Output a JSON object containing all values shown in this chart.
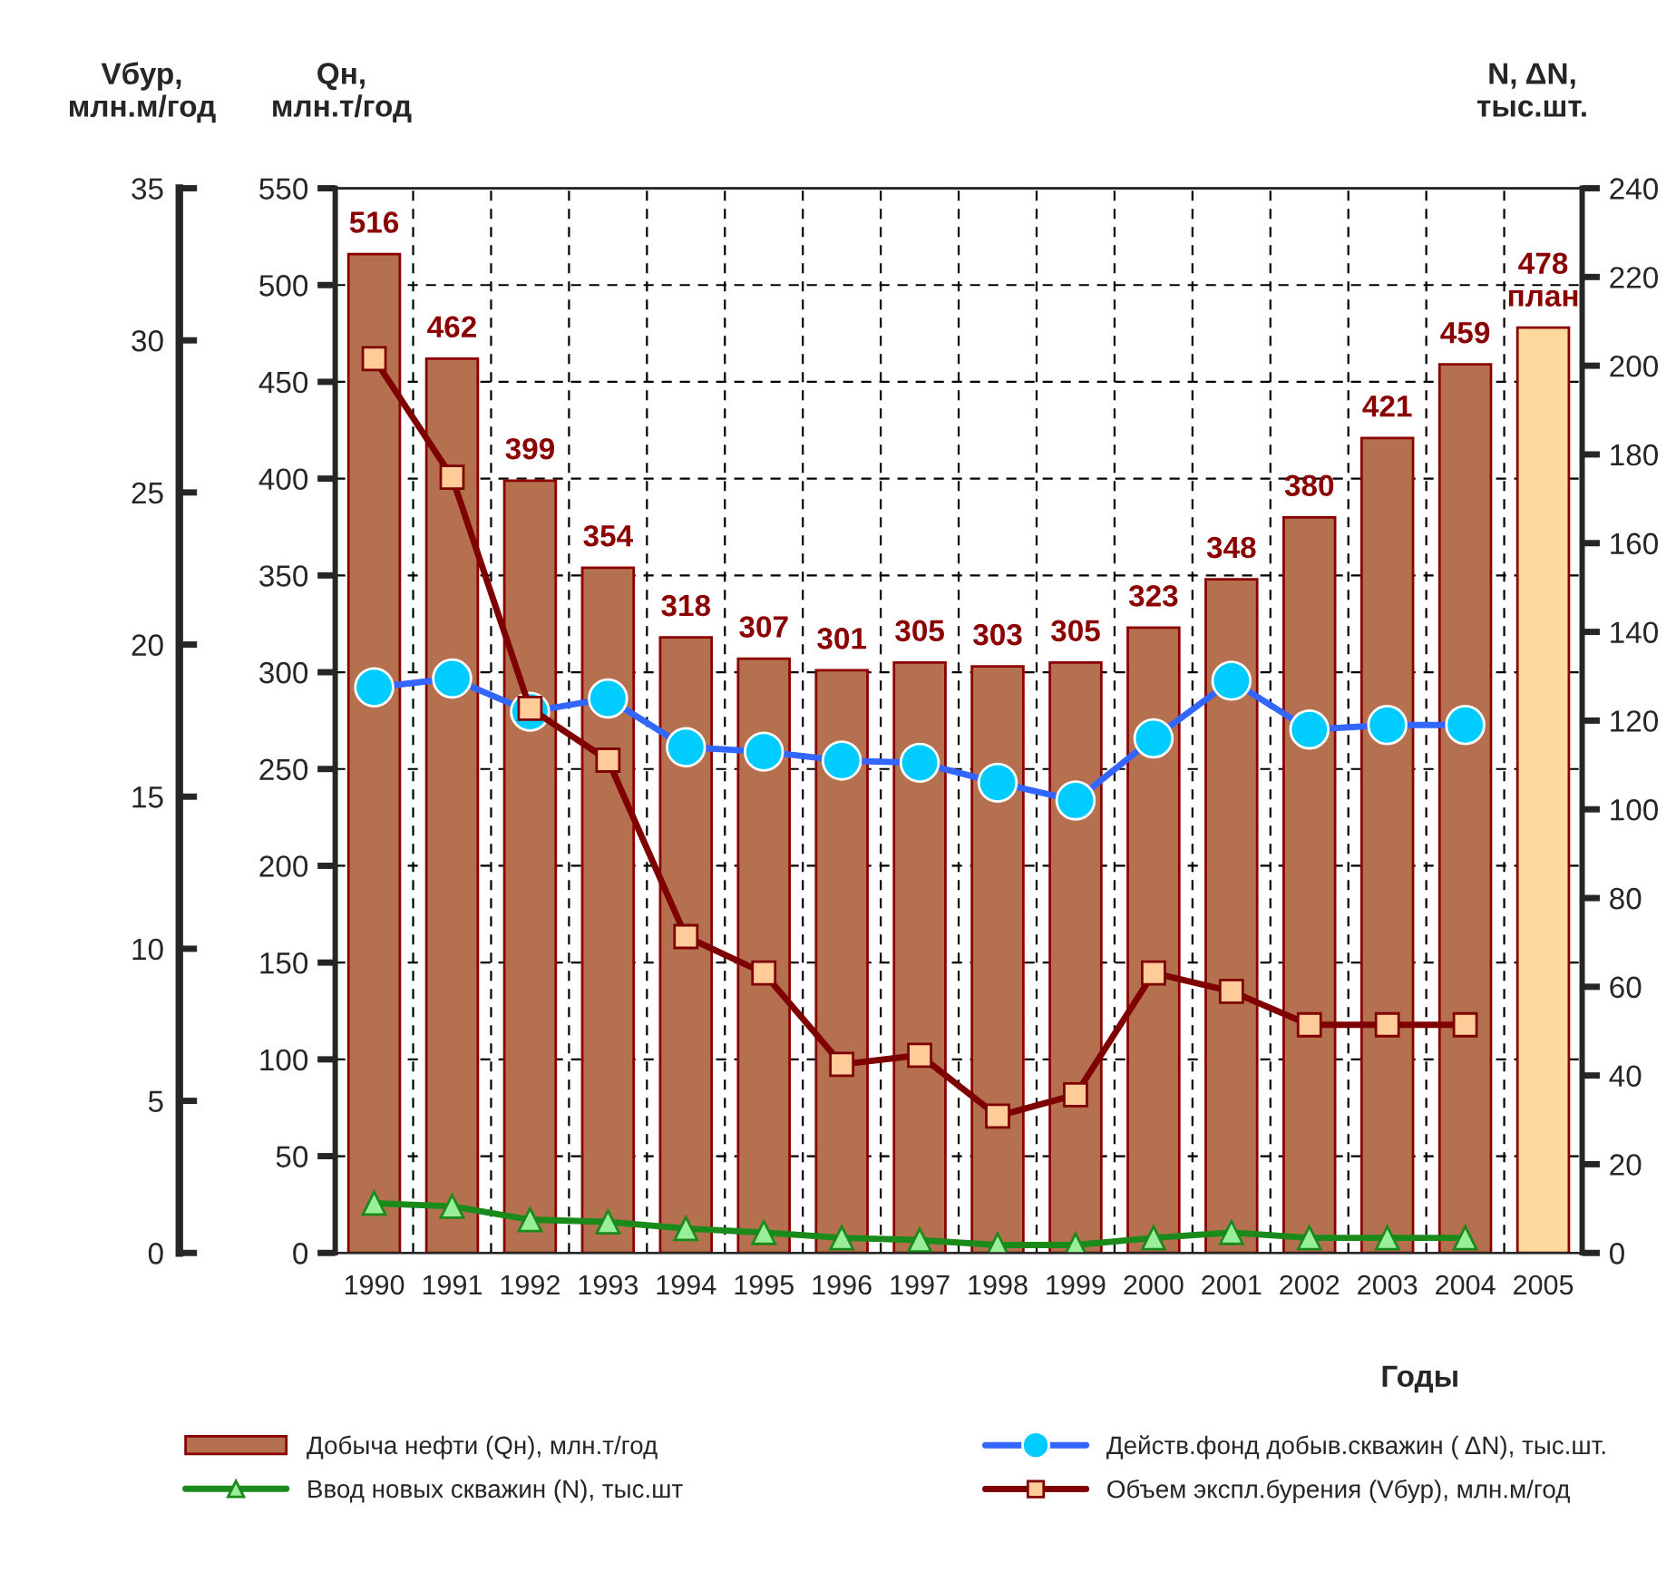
{
  "chart_data": {
    "type": "bar",
    "xlabel": "Годы",
    "ylabel": "Qн,\nмлн.т/год",
    "y2label": "N, ΔN,\nтыс.шт.",
    "y3label": "Vбур,\nмлн.м/год",
    "categories": [
      "1990",
      "1991",
      "1992",
      "1993",
      "1994",
      "1995",
      "1996",
      "1997",
      "1998",
      "1999",
      "2000",
      "2001",
      "2002",
      "2003",
      "2004",
      "2005"
    ],
    "ylim": [
      0,
      550
    ],
    "yticks": [
      0,
      50,
      100,
      150,
      200,
      250,
      300,
      350,
      400,
      450,
      500,
      550
    ],
    "y2lim": [
      0,
      240
    ],
    "y2ticks": [
      0,
      20,
      40,
      60,
      80,
      100,
      120,
      140,
      160,
      180,
      200,
      220,
      240
    ],
    "y3lim": [
      0,
      35
    ],
    "y3ticks": [
      0,
      5,
      10,
      15,
      20,
      25,
      30,
      35
    ],
    "grid": true,
    "legend": "bottom",
    "series": [
      {
        "name": "Добыча нефти (Qн), млн.т/год",
        "color": "#b5704f",
        "colors": [
          "#b5704f",
          "#b5704f",
          "#b5704f",
          "#b5704f",
          "#b5704f",
          "#b5704f",
          "#b5704f",
          "#b5704f",
          "#b5704f",
          "#b5704f",
          "#b5704f",
          "#b5704f",
          "#b5704f",
          "#b5704f",
          "#b5704f",
          "#fdd9a0"
        ],
        "values": [
          516,
          462,
          399,
          354,
          318,
          307,
          301,
          305,
          303,
          305,
          323,
          348,
          380,
          421,
          459,
          478
        ],
        "value_labels": [
          "516",
          "462",
          "399",
          "354",
          "318",
          "307",
          "301",
          "305",
          "303",
          "305",
          "323",
          "348",
          "380",
          "421",
          "459",
          "478\nплан"
        ]
      },
      {
        "type": "line",
        "name": "Ввод новых скважин (N), тыс.шт",
        "color": "#1a8a1a",
        "axis": "y2",
        "marker": "triangle",
        "line_style": "solid",
        "values": [
          11.2,
          10.5,
          7.5,
          7,
          5.5,
          4.6,
          3.4,
          2.9,
          1.8,
          1.8,
          3.4,
          4.6,
          3.4,
          3.4,
          3.4,
          null
        ]
      },
      {
        "type": "line",
        "name": "Действ.фонд добыв.скважин ( ΔN), тыс.шт.",
        "color": "#3366ff",
        "axis": "y2",
        "marker": "circle",
        "line_style": "solid",
        "values": [
          127.5,
          129.5,
          122,
          125,
          114,
          113,
          111,
          110.5,
          106,
          102,
          116,
          129,
          118,
          119,
          119,
          null
        ]
      },
      {
        "type": "line",
        "name": "Объем экспл.бурения (Vбур), млн.м/год",
        "color": "#7f0000",
        "axis": "y3",
        "marker": "square",
        "line_style": "solid",
        "values": [
          29.4,
          25.5,
          17.9,
          16.2,
          10.4,
          9.2,
          6.2,
          6.5,
          4.5,
          5.2,
          9.2,
          8.6,
          7.5,
          7.5,
          7.5,
          null
        ]
      }
    ]
  }
}
